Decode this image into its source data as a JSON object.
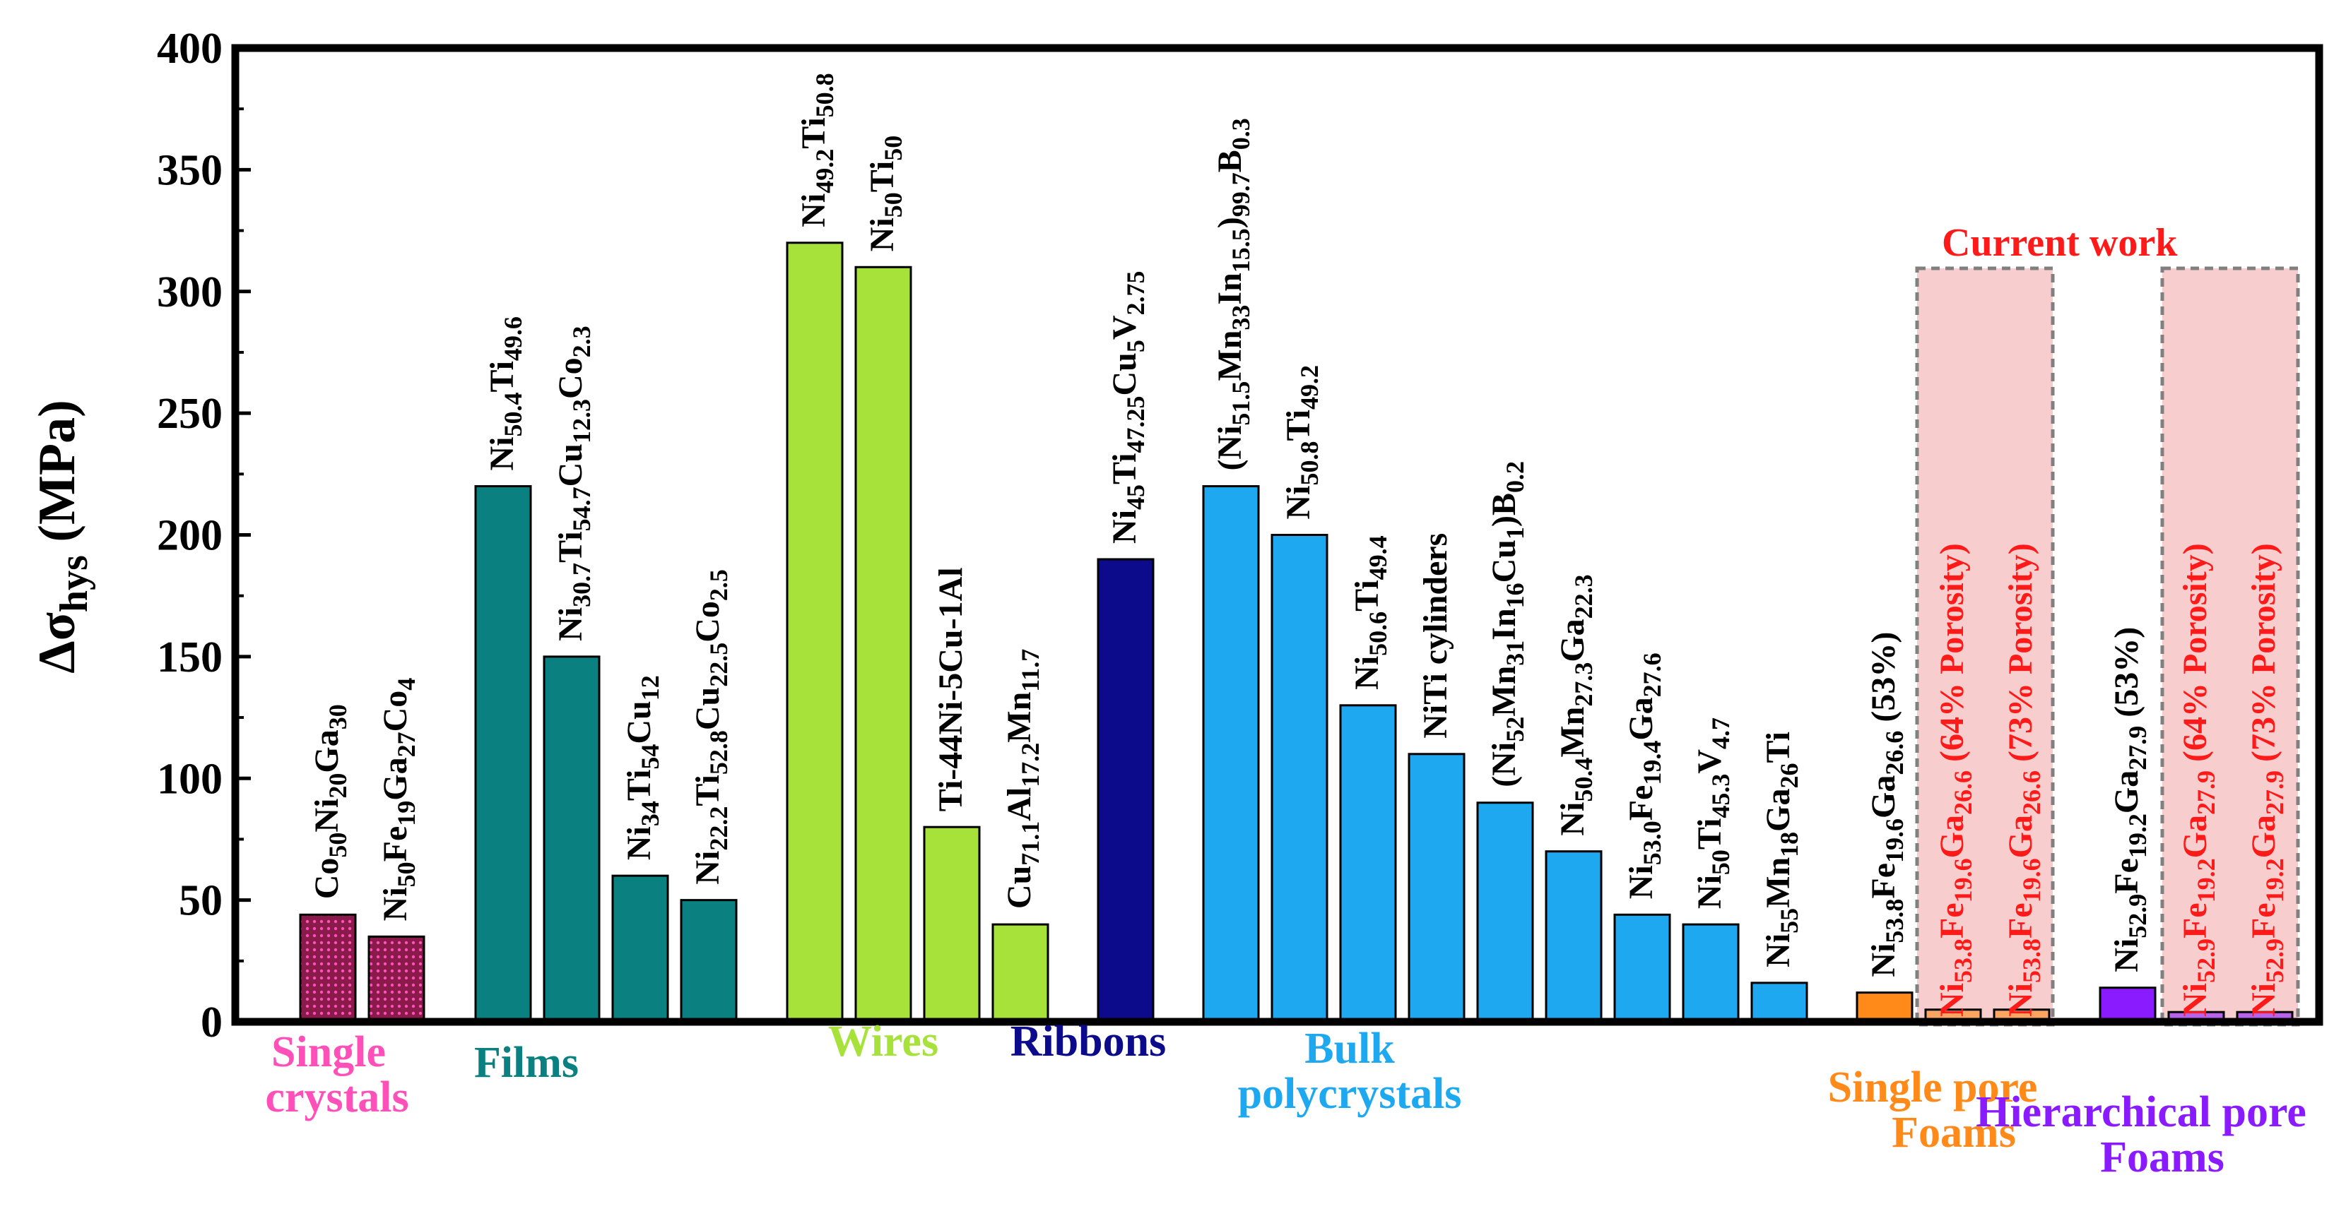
{
  "chart_data": {
    "type": "bar",
    "ylabel": "Δσhys (MPa)",
    "ylabel_main": "Δσ",
    "ylabel_sub": "hys",
    "ylabel_unit": " (MPa)",
    "ylim": [
      0,
      400
    ],
    "yticks": [
      "0",
      "50",
      "100",
      "150",
      "200",
      "250",
      "300",
      "350",
      "400"
    ],
    "annotation": "Current work",
    "groups": [
      {
        "label": [
          "Single",
          "crystals"
        ],
        "color": "#ff4fb8"
      },
      {
        "label": [
          "Films"
        ],
        "color": "#0a8080"
      },
      {
        "label": [
          "Wires"
        ],
        "color": "#a6e23a"
      },
      {
        "label": [
          "Ribbons"
        ],
        "color": "#0b0b8c"
      },
      {
        "label": [
          "Bulk",
          "polycrystals"
        ],
        "color": "#1ea8f0"
      },
      {
        "label": [
          "Single pore",
          "Foams"
        ],
        "color": "#ff8a1a"
      },
      {
        "label": [
          "Hierarchical pore",
          "Foams"
        ],
        "color": "#8a1aff"
      }
    ],
    "bars": [
      {
        "group": 0,
        "value": 44,
        "label": "Co50Ni20Ga30",
        "segments": [
          [
            "Co",
            ""
          ],
          [
            "50",
            "sub"
          ],
          [
            "Ni",
            ""
          ],
          [
            "20",
            "sub"
          ],
          [
            "Ga",
            ""
          ],
          [
            "30",
            "sub"
          ]
        ]
      },
      {
        "group": 0,
        "value": 35,
        "label": "Ni50Fe19Ga27Co4",
        "segments": [
          [
            "Ni",
            ""
          ],
          [
            "50",
            "sub"
          ],
          [
            "Fe",
            ""
          ],
          [
            "19",
            "sub"
          ],
          [
            "Ga",
            ""
          ],
          [
            "27",
            "sub"
          ],
          [
            "Co",
            ""
          ],
          [
            "4",
            "sub"
          ]
        ]
      },
      {
        "group": 1,
        "value": 220,
        "label": "Ni50.4Ti49.6",
        "segments": [
          [
            "Ni",
            ""
          ],
          [
            "50.4",
            "sub"
          ],
          [
            "Ti",
            ""
          ],
          [
            "49.6",
            "sub"
          ]
        ]
      },
      {
        "group": 1,
        "value": 150,
        "label": "Ni30.7Ti54.7Cu12.3Co2.3",
        "segments": [
          [
            "Ni",
            ""
          ],
          [
            "30.7",
            "sub"
          ],
          [
            "Ti",
            ""
          ],
          [
            "54.7",
            "sub"
          ],
          [
            "Cu",
            ""
          ],
          [
            "12.3",
            "sub"
          ],
          [
            "Co",
            ""
          ],
          [
            "2.3",
            "sub"
          ]
        ]
      },
      {
        "group": 1,
        "value": 60,
        "label": "Ni34Ti54Cu12",
        "segments": [
          [
            "Ni",
            ""
          ],
          [
            "34",
            "sub"
          ],
          [
            "Ti",
            ""
          ],
          [
            "54",
            "sub"
          ],
          [
            "Cu",
            ""
          ],
          [
            "12",
            "sub"
          ]
        ]
      },
      {
        "group": 1,
        "value": 50,
        "label": "Ni22.2Ti52.8Cu22.5Co2.5",
        "segments": [
          [
            "Ni",
            ""
          ],
          [
            "22.2",
            "sub"
          ],
          [
            "Ti",
            ""
          ],
          [
            "52.8",
            "sub"
          ],
          [
            "Cu",
            ""
          ],
          [
            "22.5",
            "sub"
          ],
          [
            "Co",
            ""
          ],
          [
            "2.5",
            "sub"
          ]
        ]
      },
      {
        "group": 2,
        "value": 320,
        "label": "Ni49.2Ti50.8",
        "segments": [
          [
            "Ni",
            ""
          ],
          [
            "49.2",
            "sub"
          ],
          [
            "Ti",
            ""
          ],
          [
            "50.8",
            "sub"
          ]
        ]
      },
      {
        "group": 2,
        "value": 310,
        "label": "Ni50Ti50",
        "segments": [
          [
            "Ni",
            ""
          ],
          [
            "50",
            "sub"
          ],
          [
            "Ti",
            ""
          ],
          [
            "50",
            "sub"
          ]
        ]
      },
      {
        "group": 2,
        "value": 80,
        "label": "Ti-44Ni-5Cu-1Al",
        "segments": [
          [
            "Ti-44Ni-5Cu-1Al",
            ""
          ]
        ]
      },
      {
        "group": 2,
        "value": 40,
        "label": "Cu71.1Al17.2Mn11.7",
        "segments": [
          [
            "Cu",
            ""
          ],
          [
            "71.1",
            "sub"
          ],
          [
            "Al",
            ""
          ],
          [
            "17.2",
            "sub"
          ],
          [
            "Mn",
            ""
          ],
          [
            "11.7",
            "sub"
          ]
        ]
      },
      {
        "group": 3,
        "value": 190,
        "label": "Ni45Ti47.25Cu5V2.75",
        "segments": [
          [
            "Ni",
            ""
          ],
          [
            "45",
            "sub"
          ],
          [
            "Ti",
            ""
          ],
          [
            "47.25",
            "sub"
          ],
          [
            "Cu",
            ""
          ],
          [
            "5",
            "sub"
          ],
          [
            "V",
            ""
          ],
          [
            "2.75",
            "sub"
          ]
        ]
      },
      {
        "group": 4,
        "value": 220,
        "label": "(Ni51.5Mn33In15.5)99.7B0.3",
        "segments": [
          [
            "(Ni",
            ""
          ],
          [
            "51.5",
            "sub"
          ],
          [
            "Mn",
            ""
          ],
          [
            "33",
            "sub"
          ],
          [
            "In",
            ""
          ],
          [
            "15.5",
            "sub"
          ],
          [
            ")",
            ""
          ],
          [
            "99.7",
            "sub"
          ],
          [
            "B",
            ""
          ],
          [
            "0.3",
            "sub"
          ]
        ]
      },
      {
        "group": 4,
        "value": 200,
        "label": "Ni50.8Ti49.2",
        "segments": [
          [
            "Ni",
            ""
          ],
          [
            "50.8",
            "sub"
          ],
          [
            "Ti",
            ""
          ],
          [
            "49.2",
            "sub"
          ]
        ]
      },
      {
        "group": 4,
        "value": 130,
        "label": "Ni50.6Ti49.4",
        "segments": [
          [
            "Ni",
            ""
          ],
          [
            "50.6",
            "sub"
          ],
          [
            "Ti",
            ""
          ],
          [
            "49.4",
            "sub"
          ]
        ]
      },
      {
        "group": 4,
        "value": 110,
        "label": "NiTi cylinders",
        "segments": [
          [
            "NiTi cylinders",
            ""
          ]
        ]
      },
      {
        "group": 4,
        "value": 90,
        "label": "(Ni52Mn31In16Cu1)B0.2",
        "segments": [
          [
            "(Ni",
            ""
          ],
          [
            "52",
            "sub"
          ],
          [
            "Mn",
            ""
          ],
          [
            "31",
            "sub"
          ],
          [
            "In",
            ""
          ],
          [
            "16",
            "sub"
          ],
          [
            "Cu",
            ""
          ],
          [
            "1",
            "sub"
          ],
          [
            ")B",
            ""
          ],
          [
            "0.2",
            "sub"
          ]
        ]
      },
      {
        "group": 4,
        "value": 70,
        "label": "Ni50.4Mn27.3Ga22.3",
        "segments": [
          [
            "Ni",
            ""
          ],
          [
            "50.4",
            "sub"
          ],
          [
            "Mn",
            ""
          ],
          [
            "27.3",
            "sub"
          ],
          [
            "Ga",
            ""
          ],
          [
            "22.3",
            "sub"
          ]
        ]
      },
      {
        "group": 4,
        "value": 44,
        "label": "Ni53.0Fe19.4Ga27.6",
        "segments": [
          [
            "Ni",
            ""
          ],
          [
            "53.0",
            "sub"
          ],
          [
            "Fe",
            ""
          ],
          [
            "19.4",
            "sub"
          ],
          [
            "Ga",
            ""
          ],
          [
            "27.6",
            "sub"
          ]
        ]
      },
      {
        "group": 4,
        "value": 40,
        "label": "Ni50Ti45.3V4.7",
        "segments": [
          [
            "Ni",
            ""
          ],
          [
            "50",
            "sub"
          ],
          [
            "Ti",
            ""
          ],
          [
            "45.3",
            "sub"
          ],
          [
            "V",
            ""
          ],
          [
            "4.7",
            "sub"
          ]
        ]
      },
      {
        "group": 4,
        "value": 16,
        "label": "Ni55Mn18Ga26Ti",
        "segments": [
          [
            "Ni",
            ""
          ],
          [
            "55",
            "sub"
          ],
          [
            "Mn",
            ""
          ],
          [
            "18",
            "sub"
          ],
          [
            "Ga",
            ""
          ],
          [
            "26",
            "sub"
          ],
          [
            "Ti",
            ""
          ]
        ]
      },
      {
        "group": 5,
        "value": 12,
        "label": "Ni53.8Fe19.6Ga26.6 (53%)",
        "segments": [
          [
            "Ni",
            ""
          ],
          [
            "53.8",
            "sub"
          ],
          [
            "Fe",
            ""
          ],
          [
            "19.6",
            "sub"
          ],
          [
            "Ga",
            ""
          ],
          [
            "26.6",
            "sub"
          ],
          [
            " (53%)",
            ""
          ]
        ]
      },
      {
        "group": 5,
        "value": 5,
        "highlight": true,
        "label": "Ni53.8Fe19.6Ga26.6 (64% Porosity)",
        "segments": [
          [
            "Ni",
            ""
          ],
          [
            "53.8",
            "sub"
          ],
          [
            "Fe",
            ""
          ],
          [
            "19.6",
            "sub"
          ],
          [
            "Ga",
            ""
          ],
          [
            "26.6",
            "sub"
          ],
          [
            " (64% Porosity)",
            ""
          ]
        ]
      },
      {
        "group": 5,
        "value": 5,
        "highlight": true,
        "label": "Ni53.8Fe19.6Ga26.6 (73% Porosity)",
        "segments": [
          [
            "Ni",
            ""
          ],
          [
            "53.8",
            "sub"
          ],
          [
            "Fe",
            ""
          ],
          [
            "19.6",
            "sub"
          ],
          [
            "Ga",
            ""
          ],
          [
            "26.6",
            "sub"
          ],
          [
            " (73% Porosity)",
            ""
          ]
        ]
      },
      {
        "group": 6,
        "value": 14,
        "label": "Ni52.9Fe19.2Ga27.9 (53%)",
        "segments": [
          [
            "Ni",
            ""
          ],
          [
            "52.9",
            "sub"
          ],
          [
            "Fe",
            ""
          ],
          [
            "19.2",
            "sub"
          ],
          [
            "Ga",
            ""
          ],
          [
            "27.9",
            "sub"
          ],
          [
            " (53%)",
            ""
          ]
        ]
      },
      {
        "group": 6,
        "value": 4,
        "highlight": true,
        "label": "Ni52.9Fe19.2Ga27.9 (64% Porosity)",
        "segments": [
          [
            "Ni",
            ""
          ],
          [
            "52.9",
            "sub"
          ],
          [
            "Fe",
            ""
          ],
          [
            "19.2",
            "sub"
          ],
          [
            "Ga",
            ""
          ],
          [
            "27.9",
            "sub"
          ],
          [
            " (64% Porosity)",
            ""
          ]
        ]
      },
      {
        "group": 6,
        "value": 4,
        "highlight": true,
        "label": "Ni52.9Fe19.2Ga27.9 (73% Porosity)",
        "segments": [
          [
            "Ni",
            ""
          ],
          [
            "52.9",
            "sub"
          ],
          [
            "Fe",
            ""
          ],
          [
            "19.2",
            "sub"
          ],
          [
            "Ga",
            ""
          ],
          [
            "27.9",
            "sub"
          ],
          [
            " (73% Porosity)",
            ""
          ]
        ]
      }
    ]
  }
}
